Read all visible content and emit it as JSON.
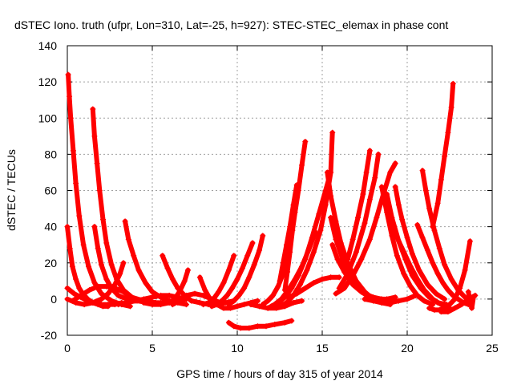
{
  "chart_data": {
    "type": "scatter",
    "title": "dSTEC Iono. truth (ufpr, Lon=310, Lat=-25, h=927): STEC-STEC_elemax in phase cont",
    "xlabel": "GPS time / hours of day 315 of year 2014",
    "ylabel": "dSTEC  / TECUs",
    "xlim": [
      0,
      25
    ],
    "ylim": [
      -20,
      140
    ],
    "xticks": [
      0,
      5,
      10,
      15,
      20,
      25
    ],
    "yticks": [
      -20,
      0,
      20,
      40,
      60,
      80,
      100,
      120,
      140
    ],
    "grid": true,
    "marker": "plus",
    "color": "#ff0000",
    "series": [
      {
        "x": [
          0.0,
          0.15,
          0.3,
          0.5,
          0.7,
          0.9,
          1.2,
          1.5,
          1.8,
          2.1,
          2.4
        ],
        "y": [
          40,
          28,
          18,
          11,
          6,
          3,
          0,
          -2,
          -3,
          -4,
          -4
        ]
      },
      {
        "x": [
          0.05,
          0.12,
          0.2,
          0.35,
          0.5,
          0.7,
          0.95,
          1.25,
          1.6,
          2.0,
          2.6,
          3.2,
          3.7
        ],
        "y": [
          124,
          112,
          100,
          82,
          64,
          46,
          30,
          18,
          9,
          3,
          -1,
          -3,
          -4
        ]
      },
      {
        "x": [
          0.0,
          0.4,
          0.8,
          1.2,
          1.6,
          2.0,
          2.4,
          2.8,
          3.2
        ],
        "y": [
          6,
          3,
          1,
          -1,
          -2,
          -3,
          -3,
          -3,
          -2
        ]
      },
      {
        "x": [
          1.5,
          1.6,
          1.75,
          1.9,
          2.1,
          2.3,
          2.6,
          2.9,
          3.3,
          3.8,
          4.5,
          5.2
        ],
        "y": [
          105,
          90,
          75,
          60,
          44,
          31,
          19,
          11,
          5,
          1,
          -1,
          -2
        ]
      },
      {
        "x": [
          1.6,
          1.8,
          2.0,
          2.3,
          2.6,
          3.0,
          3.5,
          4.1,
          4.8
        ],
        "y": [
          40,
          28,
          19,
          11,
          6,
          2,
          0,
          -1,
          -2
        ]
      },
      {
        "x": [
          0.0,
          0.5,
          1.0,
          1.5,
          2.0,
          2.4,
          2.8,
          3.1,
          3.3
        ],
        "y": [
          0,
          -2,
          -3,
          -2,
          0,
          3,
          8,
          14,
          20
        ]
      },
      {
        "x": [
          0.3,
          0.8,
          1.3,
          1.8,
          2.3,
          2.8,
          3.3,
          3.6
        ],
        "y": [
          -1,
          2,
          5,
          7,
          7,
          6,
          4,
          2
        ]
      },
      {
        "x": [
          3.4,
          3.6,
          3.9,
          4.2,
          4.6,
          5.0,
          5.5,
          6.0,
          6.5,
          7.0
        ],
        "y": [
          43,
          33,
          24,
          16,
          9,
          4,
          1,
          -1,
          -2,
          -3
        ]
      },
      {
        "x": [
          3.0,
          3.5,
          4.0,
          4.5,
          5.0,
          5.5,
          6.0,
          6.5,
          7.0
        ],
        "y": [
          -3,
          -2,
          -1,
          0,
          1,
          2,
          2,
          1,
          0
        ]
      },
      {
        "x": [
          4.0,
          4.5,
          5.0,
          5.5,
          6.0,
          6.5,
          7.0
        ],
        "y": [
          0,
          -1,
          -2,
          -2,
          -2,
          -1,
          0
        ]
      },
      {
        "x": [
          5.6,
          5.9,
          6.2,
          6.5,
          6.9,
          7.3,
          7.8,
          8.3,
          8.8,
          9.3,
          9.8
        ],
        "y": [
          24,
          17,
          11,
          6,
          2,
          -1,
          -2,
          -3,
          -3,
          -2,
          -1
        ]
      },
      {
        "x": [
          4.5,
          5.0,
          5.5,
          6.0,
          6.3,
          6.6,
          6.9,
          7.1
        ],
        "y": [
          -2,
          -3,
          -3,
          -2,
          0,
          4,
          10,
          16
        ]
      },
      {
        "x": [
          6.2,
          6.6,
          7.0,
          7.5,
          8.0,
          8.5,
          9.0
        ],
        "y": [
          -3,
          -1,
          2,
          3,
          2,
          0,
          -2
        ]
      },
      {
        "x": [
          7.8,
          8.1,
          8.4,
          8.8,
          9.2,
          9.6,
          10.0,
          10.4,
          10.8,
          11.2
        ],
        "y": [
          12,
          5,
          0,
          -3,
          -5,
          -5,
          -4,
          -3,
          -2,
          -1
        ]
      },
      {
        "x": [
          8.0,
          8.3,
          8.6,
          8.9,
          9.2,
          9.5,
          9.8
        ],
        "y": [
          -3,
          -2,
          0,
          4,
          9,
          16,
          24
        ]
      },
      {
        "x": [
          8.5,
          8.8,
          9.1,
          9.4,
          9.7,
          10.0,
          10.3,
          10.6,
          10.9
        ],
        "y": [
          -4,
          -3,
          -1,
          2,
          6,
          11,
          17,
          24,
          31
        ]
      },
      {
        "x": [
          9.5,
          9.8,
          10.1,
          10.4,
          10.7,
          11.0,
          11.3,
          11.5
        ],
        "y": [
          -3,
          -1,
          2,
          6,
          12,
          19,
          27,
          35
        ]
      },
      {
        "x": [
          9.5,
          9.8,
          10.2,
          10.7,
          11.2,
          11.7,
          12.2,
          12.8,
          13.2
        ],
        "y": [
          -13,
          -15,
          -16,
          -16,
          -15,
          -15,
          -14,
          -13,
          -12
        ]
      },
      {
        "x": [
          10.8,
          11.3,
          11.8,
          12.3,
          12.8,
          13.3,
          13.8
        ],
        "y": [
          -3,
          -4,
          -5,
          -5,
          -4,
          -2,
          -1
        ]
      },
      {
        "x": [
          11.5,
          11.8,
          12.1,
          12.4,
          12.7,
          13.0,
          13.2,
          13.4
        ],
        "y": [
          -3,
          -1,
          2,
          7,
          14,
          24,
          37,
          50
        ]
      },
      {
        "x": [
          11.8,
          12.2,
          12.6,
          13.0,
          13.4,
          13.8,
          14.2,
          14.6
        ],
        "y": [
          -5,
          -3,
          0,
          5,
          11,
          18,
          27,
          37
        ]
      },
      {
        "x": [
          12.0,
          12.4,
          12.8,
          13.2,
          13.6,
          14.0,
          14.4,
          14.8,
          15.2,
          15.5
        ],
        "y": [
          -4,
          -2,
          1,
          6,
          13,
          22,
          34,
          47,
          60,
          70
        ]
      },
      {
        "x": [
          12.5,
          12.9,
          13.3,
          13.7,
          14.1,
          14.5,
          14.9,
          15.2,
          15.5,
          15.6
        ],
        "y": [
          -4,
          -2,
          2,
          8,
          16,
          26,
          38,
          52,
          70,
          92
        ]
      },
      {
        "x": [
          12.8,
          12.95,
          13.1,
          13.25,
          13.4,
          13.6,
          13.8,
          14.0
        ],
        "y": [
          5,
          15,
          26,
          38,
          48,
          60,
          74,
          87
        ]
      },
      {
        "x": [
          12.5,
          12.7,
          12.9,
          13.1,
          13.3,
          13.5
        ],
        "y": [
          10,
          20,
          30,
          40,
          52,
          63
        ]
      },
      {
        "x": [
          13.0,
          13.5,
          14.0,
          14.5,
          15.0,
          15.5,
          16.0
        ],
        "y": [
          1,
          3,
          6,
          9,
          11,
          12,
          12
        ]
      },
      {
        "x": [
          15.3,
          15.5,
          15.8,
          16.1,
          16.5,
          17.0,
          17.5,
          18.0,
          18.5,
          19.0
        ],
        "y": [
          70,
          57,
          43,
          31,
          20,
          10,
          4,
          0,
          -2,
          -3
        ]
      },
      {
        "x": [
          15.5,
          15.8,
          16.2,
          16.6,
          17.0,
          17.5,
          18.0,
          18.5
        ],
        "y": [
          45,
          33,
          22,
          14,
          8,
          3,
          1,
          0
        ]
      },
      {
        "x": [
          15.6,
          15.9,
          16.3,
          16.8,
          17.3,
          17.8,
          18.3,
          18.8,
          19.3
        ],
        "y": [
          30,
          22,
          15,
          8,
          4,
          1,
          0,
          0,
          1
        ]
      },
      {
        "x": [
          15.8,
          16.3,
          16.8,
          17.3,
          17.8,
          18.2,
          18.6,
          19.0,
          19.3
        ],
        "y": [
          3,
          6,
          13,
          22,
          33,
          45,
          58,
          70,
          75
        ]
      },
      {
        "x": [
          16.0,
          16.5,
          17.0,
          17.5,
          17.8,
          18.1,
          18.3
        ],
        "y": [
          6,
          14,
          26,
          42,
          55,
          67,
          80
        ]
      },
      {
        "x": [
          16.5,
          16.8,
          17.1,
          17.4,
          17.6,
          17.8
        ],
        "y": [
          22,
          33,
          45,
          58,
          70,
          82
        ]
      },
      {
        "x": [
          17.5,
          18.0,
          18.5,
          19.0,
          19.5,
          20.0,
          20.5
        ],
        "y": [
          0,
          -1,
          -2,
          -2,
          -1,
          0,
          2
        ]
      },
      {
        "x": [
          18.5,
          18.8,
          19.1,
          19.4,
          19.8,
          20.2,
          20.6,
          21.0,
          21.5
        ],
        "y": [
          62,
          48,
          35,
          24,
          14,
          7,
          2,
          -1,
          -3
        ]
      },
      {
        "x": [
          18.8,
          19.1,
          19.5,
          19.9,
          20.3,
          20.8,
          21.3,
          21.8,
          22.3
        ],
        "y": [
          58,
          45,
          32,
          22,
          13,
          6,
          1,
          -2,
          -3
        ]
      },
      {
        "x": [
          19.3,
          19.5,
          19.7,
          20.0,
          20.3,
          20.7,
          21.2,
          21.7,
          22.2
        ],
        "y": [
          62,
          52,
          44,
          34,
          25,
          16,
          8,
          3,
          0
        ]
      },
      {
        "x": [
          19.0,
          19.4,
          19.8,
          20.2,
          20.6,
          21.0,
          21.5,
          22.0,
          22.5
        ],
        "y": [
          42,
          34,
          26,
          18,
          11,
          5,
          0,
          -3,
          -5
        ]
      },
      {
        "x": [
          20.6,
          20.9,
          21.2,
          21.5,
          21.8,
          22.1,
          22.4,
          22.7,
          23.0,
          23.3,
          23.6
        ],
        "y": [
          41,
          34,
          27,
          20,
          14,
          9,
          5,
          2,
          0,
          -2,
          -3
        ]
      },
      {
        "x": [
          20.9,
          21.1,
          21.3,
          21.6,
          21.9,
          22.2,
          22.6,
          23.0,
          23.4
        ],
        "y": [
          71,
          60,
          50,
          38,
          28,
          19,
          11,
          5,
          1
        ]
      },
      {
        "x": [
          21.3,
          21.6,
          21.9,
          22.2,
          22.5,
          22.8,
          23.1,
          23.4,
          23.7
        ],
        "y": [
          -5,
          -6,
          -6,
          -5,
          -3,
          0,
          6,
          16,
          32
        ]
      },
      {
        "x": [
          21.5,
          21.8,
          22.0,
          22.2,
          22.4,
          22.6,
          22.7
        ],
        "y": [
          40,
          53,
          66,
          79,
          92,
          106,
          119
        ]
      },
      {
        "x": [
          22.0,
          22.4,
          22.8,
          23.2,
          23.6,
          24.0
        ],
        "y": [
          -7,
          -7,
          -5,
          -3,
          0,
          2
        ]
      },
      {
        "x": [
          23.6,
          23.7,
          23.8,
          23.9
        ],
        "y": [
          4,
          -1,
          -5,
          1
        ]
      }
    ]
  }
}
